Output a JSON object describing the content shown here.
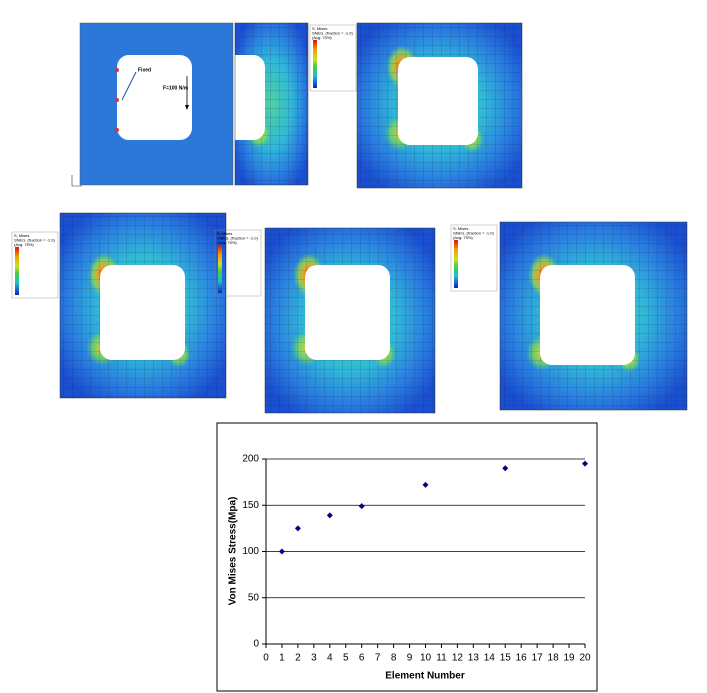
{
  "annotations": {
    "fixed": "Fixed",
    "force": "F=100 N/m"
  },
  "legend_title": [
    "S, Mises",
    "SNEG, (fraction = -1.0)",
    "(Avg: 75%)"
  ],
  "chart_data": {
    "type": "scatter",
    "x_label": "Element Number",
    "y_label": "Von Mises Stress(Mpa)",
    "x": [
      1,
      2,
      4,
      6,
      10,
      15,
      20
    ],
    "values": [
      100,
      125,
      139,
      149,
      172,
      190,
      195
    ],
    "color": "#00008b",
    "xlim": [
      0,
      20
    ],
    "xticks": [
      0,
      1,
      2,
      3,
      4,
      5,
      6,
      7,
      8,
      9,
      10,
      11,
      12,
      13,
      14,
      15,
      16,
      17,
      18,
      19,
      20
    ],
    "ylim": [
      0,
      200
    ],
    "yticks": [
      0,
      50,
      100,
      150,
      200
    ],
    "grid": true
  }
}
